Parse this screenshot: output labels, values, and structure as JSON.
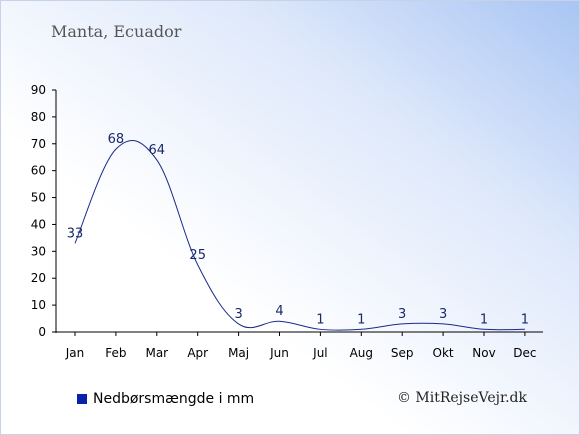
{
  "title": "Manta, Ecuador",
  "legend_label": "Nedbørsmængde i mm",
  "copyright": "© MitRejseVejr.dk",
  "colors": {
    "line": "#1a2a8a",
    "legend_swatch": "#0a22a8"
  },
  "chart_data": {
    "type": "line",
    "categories": [
      "Jan",
      "Feb",
      "Mar",
      "Apr",
      "Maj",
      "Jun",
      "Jul",
      "Aug",
      "Sep",
      "Okt",
      "Nov",
      "Dec"
    ],
    "series": [
      {
        "name": "Nedbørsmængde i mm",
        "values": [
          33,
          68,
          64,
          25,
          3,
          4,
          1,
          1,
          3,
          3,
          1,
          1
        ]
      }
    ],
    "ylim": [
      0,
      90
    ],
    "yticks": [
      0,
      10,
      20,
      30,
      40,
      50,
      60,
      70,
      80,
      90
    ],
    "grid": false,
    "legend_position": "bottom-left"
  }
}
